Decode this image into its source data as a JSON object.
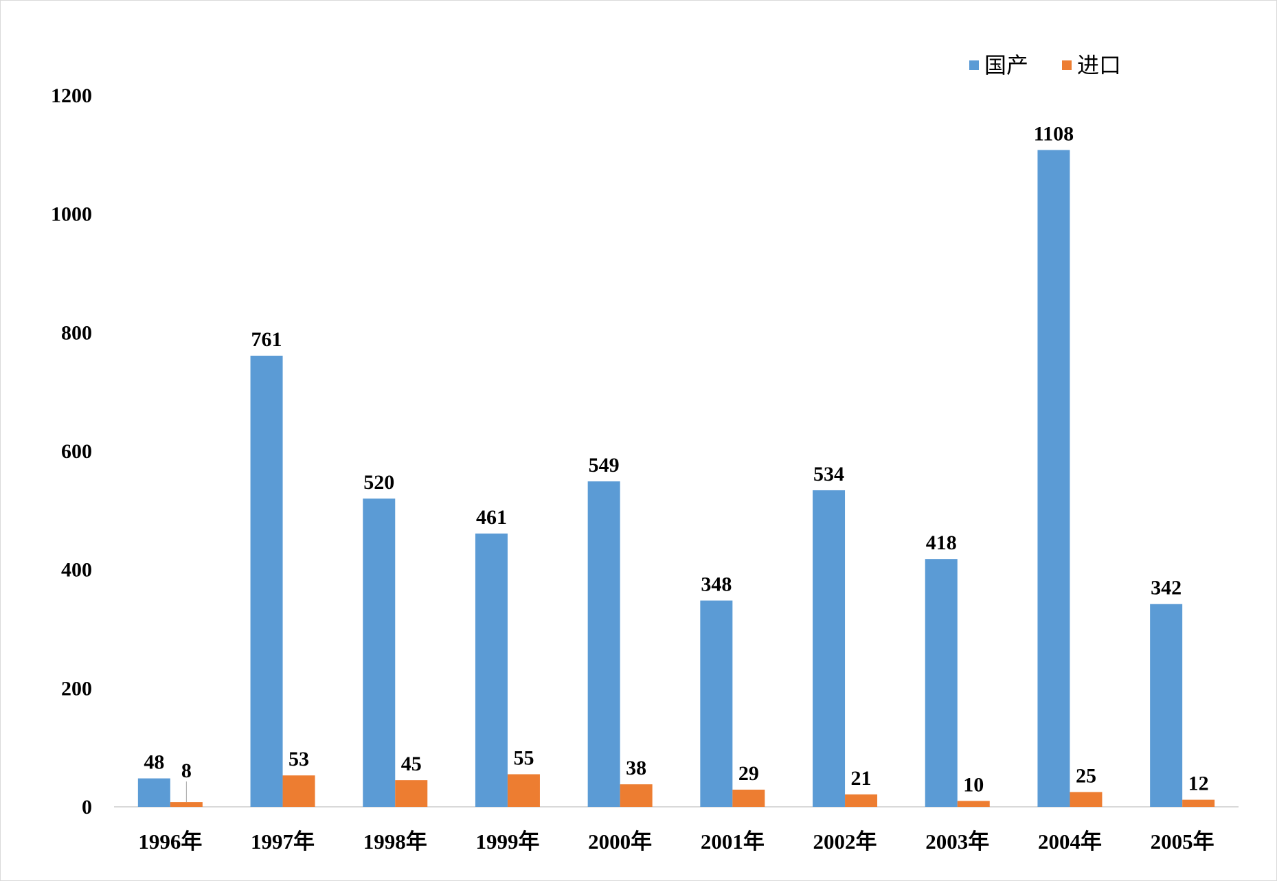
{
  "chart_data": {
    "type": "bar",
    "title": "",
    "xlabel": "",
    "ylabel": "",
    "categories": [
      "1996年",
      "1997年",
      "1998年",
      "1999年",
      "2000年",
      "2001年",
      "2002年",
      "2003年",
      "2004年",
      "2005年"
    ],
    "series": [
      {
        "name": "国产",
        "color": "#5B9BD5",
        "values": [
          48,
          761,
          520,
          461,
          549,
          348,
          534,
          418,
          1108,
          342
        ]
      },
      {
        "name": "进口",
        "color": "#ED7D31",
        "values": [
          8,
          53,
          45,
          55,
          38,
          29,
          21,
          10,
          25,
          12
        ]
      }
    ],
    "ylim": [
      0,
      1200
    ],
    "yticks": [
      0,
      200,
      400,
      600,
      800,
      1000,
      1200
    ],
    "grid": false,
    "legend": "top-right",
    "data_labels": true
  }
}
